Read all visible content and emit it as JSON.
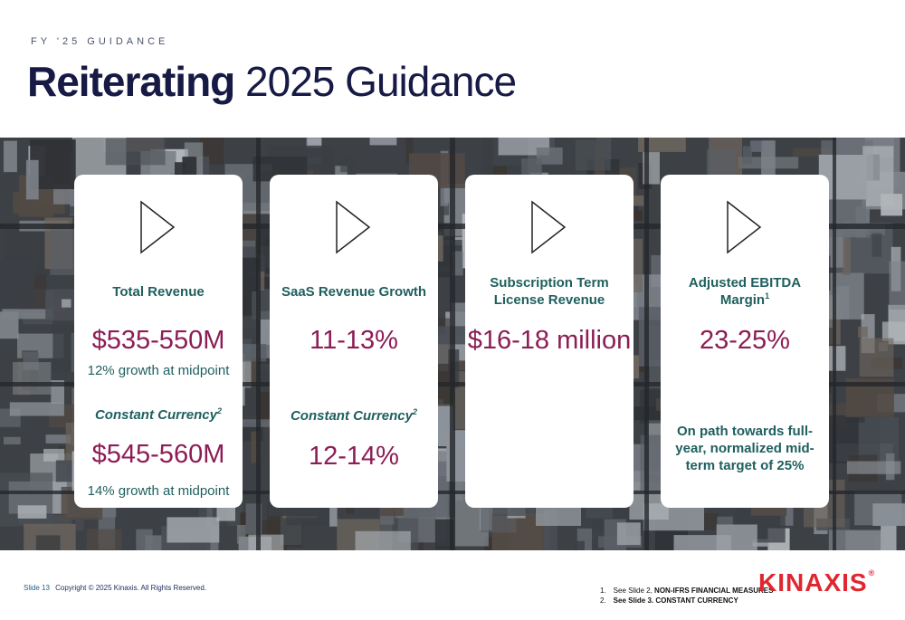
{
  "header": {
    "eyebrow": "FY '25 GUIDANCE",
    "title_bold": "Reiterating",
    "title_rest": "2025 Guidance"
  },
  "cards": [
    {
      "label": "Total Revenue",
      "value": "$535-550M",
      "note": "12% growth at midpoint",
      "cc_label": "Constant Currency",
      "cc_sup": "2",
      "cc_value": "$545-560M",
      "cc_note": "14% growth at midpoint"
    },
    {
      "label": "SaaS Revenue Growth",
      "value": "11-13%",
      "cc_label": "Constant Currency",
      "cc_sup": "2",
      "cc_value": "12-14%"
    },
    {
      "label_line1": "Subscription Term",
      "label_line2": "License Revenue",
      "value": "$16-18 million"
    },
    {
      "label_line1": "Adjusted EBITDA",
      "label_line2": "Margin",
      "label_sup": "1",
      "value": "23-25%",
      "note_line1": "On path towards full-",
      "note_line2": "year, normalized mid-",
      "note_line3": "term target of 25%"
    }
  ],
  "footer": {
    "slide": "Slide 13",
    "copyright": "Copyright © 2025 Kinaxis. All Rights Reserved.",
    "footnotes": [
      {
        "num": "1.",
        "prefix": "See Slide 2,",
        "strong": "NON-IFRS FINANCIAL MEASURES"
      },
      {
        "num": "2.",
        "prefix": "See Slide 3.",
        "strong": "CONSTANT CURRENCY"
      }
    ]
  },
  "logo": {
    "text": "KINAXIS",
    "reg": "®"
  },
  "colors": {
    "title": "#161a44",
    "teal": "#1f5f5e",
    "value": "#8c1d55",
    "brand": "#e0272f"
  }
}
